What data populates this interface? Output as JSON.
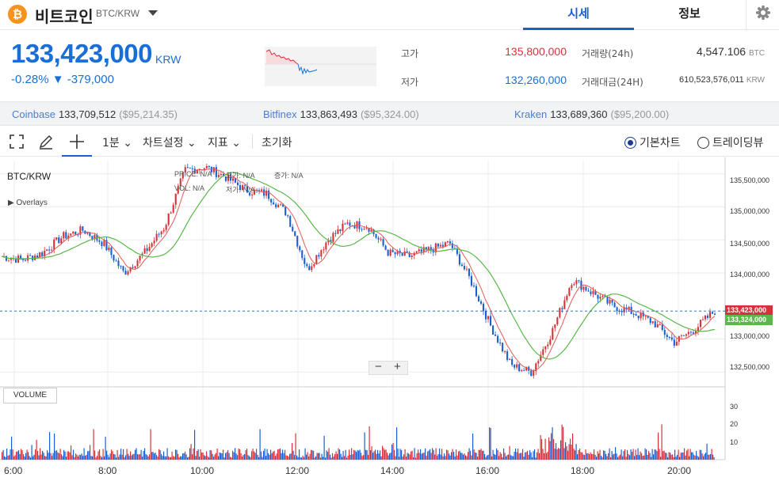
{
  "header": {
    "coin_symbol": "₿",
    "coin_name": "비트코인",
    "pair": "BTC/KRW",
    "tabs": [
      {
        "label": "시세"
      },
      {
        "label": "정보"
      }
    ],
    "icons": {
      "dropdown": "chevron-down-icon",
      "settings": "gear-icon"
    }
  },
  "summary": {
    "price": "133,423,000",
    "unit": "KRW",
    "change": "-0.28% ▼ -379,000",
    "high_label": "고가",
    "high": "135,800,000",
    "low_label": "저가",
    "low": "132,260,000",
    "volume_label": "거래량(24h)",
    "volume": "4,547.106",
    "volume_unit": "BTC",
    "value_label": "거래대금(24H)",
    "value": "610,523,576,011",
    "value_unit": "KRW",
    "colors": {
      "up": "#d6323a",
      "down": "#1a6fd6"
    }
  },
  "exchanges": [
    {
      "name": "Coinbase",
      "price": "133,709,512",
      "usd": "($95,214.35)"
    },
    {
      "name": "Bitfinex",
      "price": "133,863,493",
      "usd": "($95,324.00)"
    },
    {
      "name": "Kraken",
      "price": "133,689,360",
      "usd": "($95,200.00)"
    }
  ],
  "toolbar": {
    "interval": "1분",
    "chart_settings": "차트설정",
    "indicators": "지표",
    "reset": "초기화",
    "basic_chart": "기본차트",
    "tradingview": "트레이딩뷰",
    "icons": [
      "fullscreen-icon",
      "pencil-icon",
      "crosshair-icon"
    ]
  },
  "chart": {
    "title": "BTC/KRW",
    "price_label": "PRICE:",
    "price_val": "N/A",
    "high_label": "고가:",
    "high_val": "N/A",
    "change_label": "증가:",
    "change_val": "N/A",
    "vol_label": "VOL:",
    "vol_val": "N/A",
    "low_label": "저가:",
    "low_val": "N/A",
    "overlays": "▶ Overlays",
    "volume_label": "VOLUME",
    "current_price_tag": "133,423,000",
    "ma_tag": "133,324,000",
    "y_ticks": [
      "135,500,000",
      "135,000,000",
      "134,500,000",
      "134,000,000",
      "133,000,000",
      "132,500,000"
    ],
    "x_ticks": [
      "6:00",
      "8:00",
      "10:00",
      "12:00",
      "14:00",
      "16:00",
      "18:00",
      "20:00"
    ],
    "vol_ticks": [
      "30",
      "20",
      "10"
    ],
    "colors": {
      "up": "#d6323a",
      "down": "#1a5fd1",
      "ma_short": "#e15b52",
      "ma_long": "#5ab84a"
    }
  },
  "chart_data": {
    "type": "line",
    "x": [
      "5:50",
      "6:30",
      "7:00",
      "7:30",
      "8:00",
      "8:30",
      "9:00",
      "9:30",
      "10:00",
      "10:20",
      "10:40",
      "11:00",
      "11:30",
      "12:00",
      "12:30",
      "13:00",
      "13:30",
      "14:00",
      "14:30",
      "15:00",
      "15:30",
      "16:00",
      "16:30",
      "17:00",
      "17:30",
      "17:40",
      "17:50",
      "18:00",
      "18:20",
      "18:40",
      "19:00",
      "19:20",
      "19:40",
      "20:00",
      "20:20",
      "20:40"
    ],
    "series": [
      {
        "values": [
          134250000,
          134200000,
          134300000,
          134550000,
          134650000,
          134450000,
          134000000,
          134300000,
          134700000,
          135550000,
          135600000,
          135450000,
          135250000,
          135200000,
          134900000,
          134050000,
          134500000,
          134750000,
          134700000,
          134300000,
          134250000,
          134350000,
          134450000,
          133900000,
          133200000,
          132600000,
          132500000,
          133100000,
          133900000,
          133700000,
          133500000,
          133400000,
          133250000,
          132950000,
          133150000,
          133423000
        ]
      }
    ],
    "ylim": [
      132300000,
      135700000
    ],
    "y_ticks": [
      135500000,
      135000000,
      134500000,
      134000000,
      133000000,
      132500000
    ],
    "current_price": 133423000
  }
}
